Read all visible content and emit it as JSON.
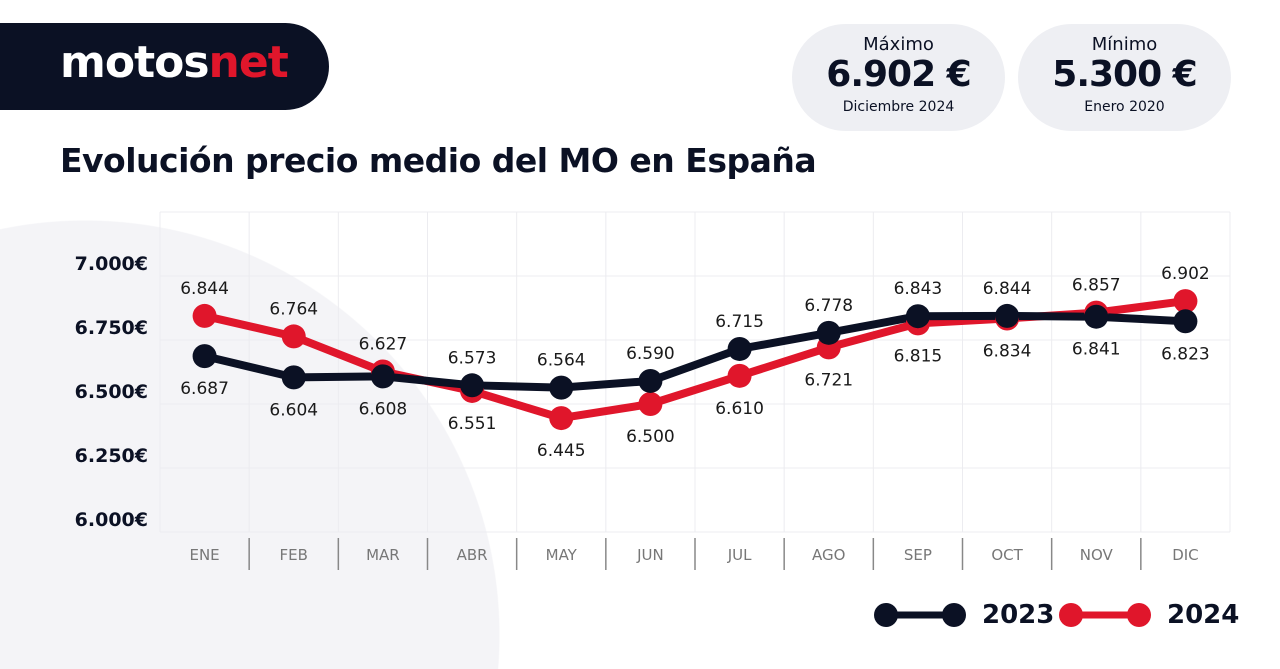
{
  "brand": {
    "logo_main": "motos",
    "logo_accent": "net"
  },
  "stats": [
    {
      "label": "Máximo",
      "value": "6.902 €",
      "sub": "Diciembre 2024"
    },
    {
      "label": "Mínimo",
      "value": "5.300 €",
      "sub": "Enero 2020"
    }
  ],
  "colors": {
    "series_2023": "#0b1124",
    "series_2024": "#e0162b"
  },
  "chart_data": {
    "type": "line",
    "title": "Evolución precio medio del MO en España",
    "categories": [
      "ENE",
      "FEB",
      "MAR",
      "ABR",
      "MAY",
      "JUN",
      "JUL",
      "AGO",
      "SEP",
      "OCT",
      "NOV",
      "DIC"
    ],
    "ylim": [
      6000,
      7250
    ],
    "yticks": [
      6000,
      6250,
      6500,
      6750,
      7000
    ],
    "ytick_labels": [
      "6.000€",
      "6.250€",
      "6.500€",
      "6.750€",
      "7.000€"
    ],
    "grid": true,
    "legend": "bottom-right",
    "series": [
      {
        "name": "2023",
        "color": "#0b1124",
        "values": [
          6687,
          6604,
          6608,
          6573,
          6564,
          6590,
          6715,
          6778,
          6843,
          6844,
          6841,
          6823
        ],
        "labels": [
          "6.687",
          "6.604",
          "6.608",
          "6.573",
          "6.564",
          "6.590",
          "6.715",
          "6.778",
          "6.843",
          "6.844",
          "6.841",
          "6.823"
        ]
      },
      {
        "name": "2024",
        "color": "#e0162b",
        "values": [
          6844,
          6764,
          6627,
          6551,
          6445,
          6500,
          6610,
          6721,
          6815,
          6834,
          6857,
          6902
        ],
        "labels": [
          "6.844",
          "6.764",
          "6.627",
          "6.551",
          "6.445",
          "6.500",
          "6.610",
          "6.721",
          "6.815",
          "6.834",
          "6.857",
          "6.902"
        ]
      }
    ]
  }
}
